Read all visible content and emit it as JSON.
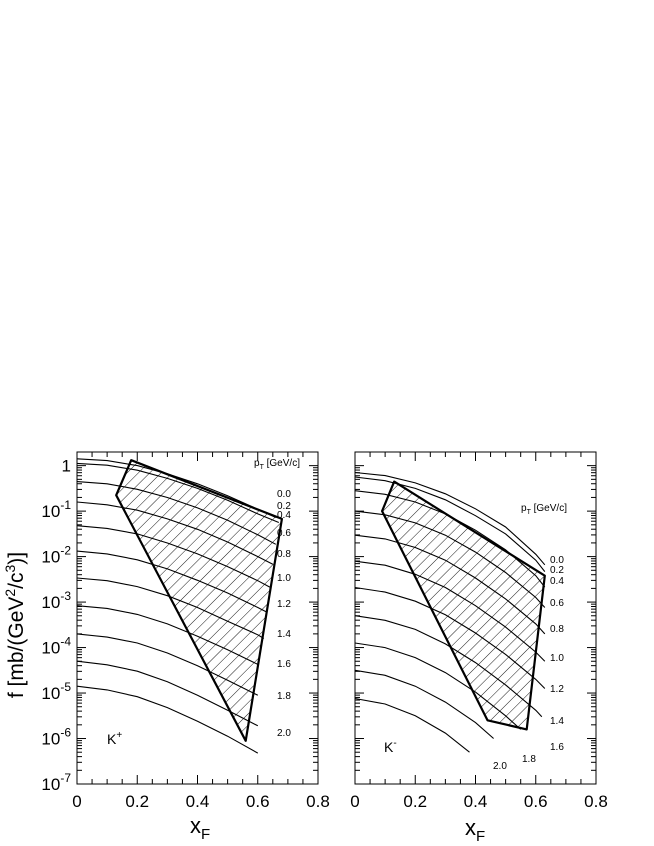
{
  "ylabel": {
    "main": "f [mb/(GeV",
    "sup1": "2",
    "mid": "/c",
    "sup2": "3",
    "end": ")]"
  },
  "chart_data": [
    {
      "type": "line",
      "panel": "left",
      "particle": {
        "base": "K",
        "sup": "+"
      },
      "legend_title": {
        "base": "p",
        "sub": "T",
        "unit": " [GeV/c]"
      },
      "xlabel": {
        "base": "x",
        "sub": "F"
      },
      "xlim": [
        0,
        0.8
      ],
      "ylim_log10": [
        -7,
        0.3
      ],
      "yscale": "log",
      "x_ticks": [
        "0",
        "0.2",
        "0.4",
        "0.6",
        "0.8"
      ],
      "y_ticks": [
        {
          "e": 0,
          "text": "1"
        },
        {
          "e": -1,
          "text": "10",
          "sup": "-1"
        },
        {
          "e": -2,
          "text": "10",
          "sup": "-2"
        },
        {
          "e": -3,
          "text": "10",
          "sup": "-3"
        },
        {
          "e": -4,
          "text": "10",
          "sup": "-4"
        },
        {
          "e": -5,
          "text": "10",
          "sup": "-5"
        },
        {
          "e": -6,
          "text": "10",
          "sup": "-6"
        },
        {
          "e": -7,
          "text": "10",
          "sup": "-7"
        }
      ],
      "series": [
        {
          "label": "0.0",
          "x": [
            0.0,
            0.1,
            0.2,
            0.3,
            0.4,
            0.5,
            0.6,
            0.66
          ],
          "log10f": [
            0.15,
            0.11,
            0.0,
            -0.18,
            -0.4,
            -0.66,
            -0.96,
            -1.14
          ]
        },
        {
          "label": "0.2",
          "x": [
            0.0,
            0.1,
            0.2,
            0.3,
            0.4,
            0.5,
            0.6,
            0.67
          ],
          "log10f": [
            0.05,
            0.01,
            -0.1,
            -0.28,
            -0.5,
            -0.76,
            -1.06,
            -1.25
          ]
        },
        {
          "label": "0.4",
          "x": [
            0.0,
            0.1,
            0.2,
            0.3,
            0.4,
            0.5,
            0.6,
            0.66
          ],
          "log10f": [
            -0.35,
            -0.4,
            -0.52,
            -0.7,
            -0.93,
            -1.2,
            -1.52,
            -1.73
          ]
        },
        {
          "label": "0.6",
          "x": [
            0.0,
            0.1,
            0.2,
            0.3,
            0.4,
            0.5,
            0.6,
            0.65
          ],
          "log10f": [
            -0.8,
            -0.86,
            -0.98,
            -1.17,
            -1.4,
            -1.68,
            -2.0,
            -2.17
          ]
        },
        {
          "label": "0.8",
          "x": [
            0.0,
            0.1,
            0.2,
            0.3,
            0.4,
            0.5,
            0.6,
            0.64
          ],
          "log10f": [
            -1.32,
            -1.38,
            -1.5,
            -1.7,
            -1.94,
            -2.22,
            -2.53,
            -2.67
          ]
        },
        {
          "label": "1.0",
          "x": [
            0.0,
            0.1,
            0.2,
            0.3,
            0.4,
            0.5,
            0.6,
            0.63
          ],
          "log10f": [
            -1.88,
            -1.94,
            -2.07,
            -2.27,
            -2.52,
            -2.8,
            -3.12,
            -3.22
          ]
        },
        {
          "label": "1.2",
          "x": [
            0.0,
            0.1,
            0.2,
            0.3,
            0.4,
            0.5,
            0.6,
            0.62
          ],
          "log10f": [
            -2.47,
            -2.53,
            -2.66,
            -2.86,
            -3.12,
            -3.42,
            -3.72,
            -3.8
          ]
        },
        {
          "label": "1.4",
          "x": [
            0.0,
            0.1,
            0.2,
            0.3,
            0.4,
            0.5,
            0.6
          ],
          "log10f": [
            -3.08,
            -3.14,
            -3.27,
            -3.48,
            -3.75,
            -4.05,
            -4.37
          ]
        },
        {
          "label": "1.6",
          "x": [
            0.0,
            0.1,
            0.2,
            0.3,
            0.4,
            0.5,
            0.6
          ],
          "log10f": [
            -3.7,
            -3.77,
            -3.9,
            -4.12,
            -4.4,
            -4.72,
            -5.05
          ]
        },
        {
          "label": "1.8",
          "x": [
            0.0,
            0.1,
            0.2,
            0.3,
            0.4,
            0.5,
            0.6
          ],
          "log10f": [
            -4.3,
            -4.38,
            -4.52,
            -4.75,
            -5.05,
            -5.38,
            -5.72
          ]
        },
        {
          "label": "2.0",
          "x": [
            0.0,
            0.1,
            0.2,
            0.3,
            0.4,
            0.5,
            0.6
          ],
          "log10f": [
            -4.85,
            -4.93,
            -5.08,
            -5.32,
            -5.62,
            -5.95,
            -6.32
          ]
        }
      ],
      "hatched_region": {
        "x": [
          0.18,
          0.68,
          0.56,
          0.13
        ],
        "log10f": [
          0.12,
          -1.17,
          -6.05,
          -0.65
        ]
      }
    },
    {
      "type": "line",
      "panel": "right",
      "particle": {
        "base": "K",
        "sup": "-"
      },
      "legend_title": {
        "base": "p",
        "sub": "T",
        "unit": " [GeV/c]"
      },
      "xlabel": {
        "base": "x",
        "sub": "F"
      },
      "xlim": [
        0,
        0.8
      ],
      "ylim_log10": [
        -7,
        0.3
      ],
      "yscale": "log",
      "x_ticks": [
        "0",
        "0.2",
        "0.4",
        "0.6",
        "0.8"
      ],
      "series": [
        {
          "label": "0.0",
          "x": [
            0.0,
            0.1,
            0.2,
            0.3,
            0.4,
            0.5,
            0.6,
            0.63
          ],
          "log10f": [
            -0.15,
            -0.22,
            -0.38,
            -0.62,
            -0.95,
            -1.35,
            -1.95,
            -2.18
          ]
        },
        {
          "label": "0.2",
          "x": [
            0.0,
            0.1,
            0.2,
            0.3,
            0.4,
            0.5,
            0.6,
            0.63
          ],
          "log10f": [
            -0.25,
            -0.33,
            -0.5,
            -0.75,
            -1.1,
            -1.5,
            -2.08,
            -2.33
          ]
        },
        {
          "label": "0.4",
          "x": [
            0.0,
            0.1,
            0.2,
            0.3,
            0.4,
            0.5,
            0.6,
            0.63
          ],
          "log10f": [
            -0.55,
            -0.63,
            -0.8,
            -1.06,
            -1.42,
            -1.85,
            -2.42,
            -2.67
          ]
        },
        {
          "label": "0.6",
          "x": [
            0.0,
            0.1,
            0.2,
            0.3,
            0.4,
            0.5,
            0.6,
            0.63
          ],
          "log10f": [
            -1.0,
            -1.08,
            -1.26,
            -1.53,
            -1.9,
            -2.35,
            -2.9,
            -3.12
          ]
        },
        {
          "label": "0.8",
          "x": [
            0.0,
            0.1,
            0.2,
            0.3,
            0.4,
            0.5,
            0.6,
            0.63
          ],
          "log10f": [
            -1.53,
            -1.61,
            -1.8,
            -2.08,
            -2.47,
            -2.93,
            -3.48,
            -3.7
          ]
        },
        {
          "label": "1.0",
          "x": [
            0.0,
            0.1,
            0.2,
            0.3,
            0.4,
            0.5,
            0.6,
            0.63
          ],
          "log10f": [
            -2.1,
            -2.19,
            -2.39,
            -2.68,
            -3.08,
            -3.55,
            -4.1,
            -4.3
          ]
        },
        {
          "label": "1.2",
          "x": [
            0.0,
            0.1,
            0.2,
            0.3,
            0.4,
            0.5,
            0.6,
            0.63
          ],
          "log10f": [
            -2.68,
            -2.78,
            -2.98,
            -3.28,
            -3.68,
            -4.15,
            -4.7,
            -4.9
          ]
        },
        {
          "label": "1.4",
          "x": [
            0.0,
            0.1,
            0.2,
            0.3,
            0.4,
            0.5,
            0.6,
            0.62
          ],
          "log10f": [
            -3.3,
            -3.4,
            -3.6,
            -3.92,
            -4.33,
            -4.82,
            -5.38,
            -5.52
          ]
        },
        {
          "label": "1.6",
          "x": [
            0.0,
            0.1,
            0.2,
            0.3,
            0.4,
            0.5,
            0.55
          ],
          "log10f": [
            -3.9,
            -4.0,
            -4.22,
            -4.55,
            -4.98,
            -5.5,
            -5.8
          ]
        },
        {
          "label": "1.8",
          "x": [
            0.0,
            0.1,
            0.2,
            0.3,
            0.4,
            0.46
          ],
          "log10f": [
            -4.5,
            -4.61,
            -4.85,
            -5.2,
            -5.65,
            -6.0
          ]
        },
        {
          "label": "2.0",
          "x": [
            0.0,
            0.1,
            0.2,
            0.3,
            0.38
          ],
          "log10f": [
            -5.12,
            -5.24,
            -5.5,
            -5.88,
            -6.3
          ]
        }
      ],
      "hatched_region": {
        "x": [
          0.13,
          0.63,
          0.57,
          0.44,
          0.09
        ],
        "log10f": [
          -0.35,
          -2.42,
          -5.8,
          -5.6,
          -1.0
        ]
      }
    }
  ]
}
